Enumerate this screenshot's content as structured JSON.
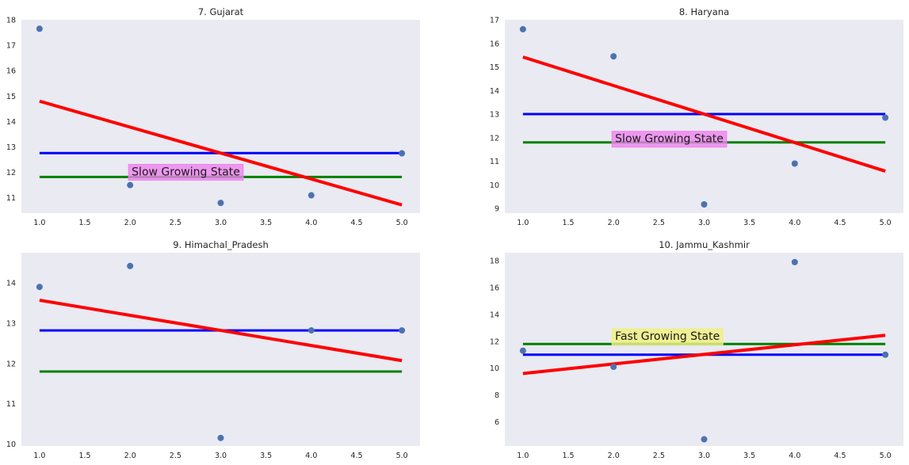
{
  "chart_data": [
    {
      "type": "scatter",
      "title": "7. Gujarat",
      "x": [
        1,
        2,
        3,
        4,
        5
      ],
      "y": [
        17.65,
        11.5,
        10.8,
        11.1,
        12.75
      ],
      "xlim": [
        0.8,
        5.2
      ],
      "ylim": [
        10.4,
        18
      ],
      "xticks": [
        "1.0",
        "1.5",
        "2.0",
        "2.5",
        "3.0",
        "3.5",
        "4.0",
        "4.5",
        "5.0"
      ],
      "yticks": [
        "11",
        "12",
        "13",
        "14",
        "15",
        "16",
        "17",
        "18"
      ],
      "mean_line": {
        "color": "#0000ff",
        "value": 12.76
      },
      "overall_line": {
        "color": "#008000",
        "value": 11.82
      },
      "trend_line": {
        "color": "#ff0000",
        "start": 14.8,
        "end": 10.72
      },
      "annotation": {
        "text": "Slow Growing State",
        "x": 2.0,
        "y": 11.88,
        "color": "#ee82ee"
      },
      "grid": false
    },
    {
      "type": "scatter",
      "title": "8. Haryana",
      "x": [
        1,
        2,
        3,
        4,
        5
      ],
      "y": [
        16.6,
        15.45,
        9.17,
        10.9,
        12.85
      ],
      "xlim": [
        0.8,
        5.2
      ],
      "ylim": [
        8.8,
        17
      ],
      "xticks": [
        "1.0",
        "1.5",
        "2.0",
        "2.5",
        "3.0",
        "3.5",
        "4.0",
        "4.5",
        "5.0"
      ],
      "yticks": [
        "9",
        "10",
        "11",
        "12",
        "13",
        "14",
        "15",
        "16",
        "17"
      ],
      "mean_line": {
        "color": "#0000ff",
        "value": 13.0
      },
      "overall_line": {
        "color": "#008000",
        "value": 11.8
      },
      "trend_line": {
        "color": "#ff0000",
        "start": 15.42,
        "end": 10.58
      },
      "annotation": {
        "text": "Slow Growing State",
        "x": 2.0,
        "y": 11.8,
        "color": "#ee82ee"
      },
      "grid": false
    },
    {
      "type": "scatter",
      "title": "9. Himachal_Pradesh",
      "x": [
        1,
        2,
        3,
        4,
        5
      ],
      "y": [
        13.9,
        14.42,
        10.15,
        12.82,
        12.82
      ],
      "xlim": [
        0.8,
        5.2
      ],
      "ylim": [
        9.95,
        14.75
      ],
      "xticks": [
        "1.0",
        "1.5",
        "2.0",
        "2.5",
        "3.0",
        "3.5",
        "4.0",
        "4.5",
        "5.0"
      ],
      "yticks": [
        "10",
        "11",
        "12",
        "13",
        "14"
      ],
      "mean_line": {
        "color": "#0000ff",
        "value": 12.82
      },
      "overall_line": {
        "color": "#008000",
        "value": 11.8
      },
      "trend_line": {
        "color": "#ff0000",
        "start": 13.57,
        "end": 12.07
      },
      "annotation": null,
      "grid": false
    },
    {
      "type": "scatter",
      "title": "10. Jammu_Kashmir",
      "x": [
        1,
        2,
        3,
        4,
        5
      ],
      "y": [
        11.3,
        10.1,
        4.7,
        17.9,
        11.0
      ],
      "xlim": [
        0.8,
        5.2
      ],
      "ylim": [
        4.2,
        18.6
      ],
      "xticks": [
        "1.0",
        "1.5",
        "2.0",
        "2.5",
        "3.0",
        "3.5",
        "4.0",
        "4.5",
        "5.0"
      ],
      "yticks": [
        "6",
        "8",
        "10",
        "12",
        "14",
        "16",
        "18"
      ],
      "mean_line": {
        "color": "#0000ff",
        "value": 11.0
      },
      "overall_line": {
        "color": "#008000",
        "value": 11.8
      },
      "trend_line": {
        "color": "#ff0000",
        "start": 9.6,
        "end": 12.45
      },
      "annotation": {
        "text": "Fast Growing State",
        "x": 2.0,
        "y": 12.1,
        "color": "#f0f07a"
      },
      "grid": false
    }
  ],
  "style": {
    "axes_bg": "#eaeaf2",
    "marker_color": "#4c72b0"
  }
}
